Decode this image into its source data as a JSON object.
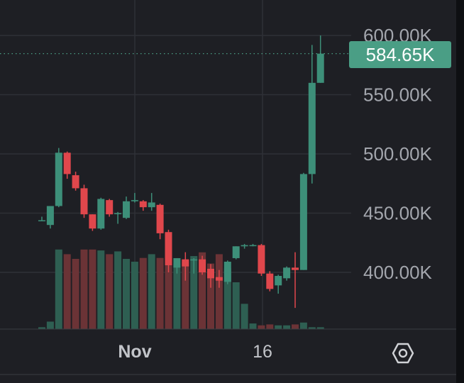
{
  "chart_data": {
    "type": "candlestick",
    "x_ticks": [
      "Nov",
      "16"
    ],
    "y_ticks": [
      "600.00K",
      "550.00K",
      "500.00K",
      "450.00K",
      "400.00K"
    ],
    "ylim": [
      370000,
      615000
    ],
    "grid": true,
    "last_price": "584.65K",
    "candles": [
      {
        "open": 444,
        "high": 447,
        "low": 444,
        "close": 444
      },
      {
        "open": 440,
        "high": 454,
        "low": 437,
        "close": 456
      },
      {
        "open": 456,
        "high": 505,
        "low": 455,
        "close": 501
      },
      {
        "open": 501,
        "high": 502,
        "low": 479,
        "close": 483
      },
      {
        "open": 482,
        "high": 485,
        "low": 469,
        "close": 471
      },
      {
        "open": 471,
        "high": 474,
        "low": 446,
        "close": 449
      },
      {
        "open": 449,
        "high": 449,
        "low": 435,
        "close": 437
      },
      {
        "open": 437,
        "high": 463,
        "low": 436,
        "close": 462
      },
      {
        "open": 461,
        "high": 462,
        "low": 447,
        "close": 449
      },
      {
        "open": 450,
        "high": 451,
        "low": 441,
        "close": 450
      },
      {
        "open": 446,
        "high": 464,
        "low": 445,
        "close": 460
      },
      {
        "open": 460,
        "high": 467,
        "low": 459,
        "close": 461
      },
      {
        "open": 460,
        "high": 461,
        "low": 452,
        "close": 455
      },
      {
        "open": 455,
        "high": 467,
        "low": 452,
        "close": 459
      },
      {
        "open": 457,
        "high": 458,
        "low": 428,
        "close": 433
      },
      {
        "open": 434,
        "high": 436,
        "low": 400,
        "close": 406
      },
      {
        "open": 404,
        "high": 412,
        "low": 399,
        "close": 412
      },
      {
        "open": 411,
        "high": 417,
        "low": 393,
        "close": 405
      },
      {
        "open": 410,
        "high": 412,
        "low": 399,
        "close": 411
      },
      {
        "open": 411,
        "high": 414,
        "low": 398,
        "close": 400
      },
      {
        "open": 403,
        "high": 407,
        "low": 387,
        "close": 395
      },
      {
        "open": 396,
        "high": 402,
        "low": 387,
        "close": 393
      },
      {
        "open": 392,
        "high": 410,
        "low": 390,
        "close": 409
      },
      {
        "open": 412,
        "high": 422,
        "low": 411,
        "close": 422
      },
      {
        "open": 422,
        "high": 424,
        "low": 420,
        "close": 423
      },
      {
        "open": 423,
        "high": 424,
        "low": 422,
        "close": 423
      },
      {
        "open": 423,
        "high": 424,
        "low": 397,
        "close": 399
      },
      {
        "open": 399,
        "high": 401,
        "low": 384,
        "close": 386
      },
      {
        "open": 389,
        "high": 398,
        "low": 382,
        "close": 397
      },
      {
        "open": 395,
        "high": 405,
        "low": 393,
        "close": 404
      },
      {
        "open": 404,
        "high": 417,
        "low": 370,
        "close": 402
      },
      {
        "open": 402,
        "high": 484,
        "low": 402,
        "close": 483
      },
      {
        "open": 483,
        "high": 592,
        "low": 475,
        "close": 560
      },
      {
        "open": 560,
        "high": 600,
        "low": 560,
        "close": 584.65
      }
    ],
    "volumes": [
      2,
      8,
      85,
      80,
      75,
      85,
      85,
      84,
      80,
      83,
      75,
      72,
      76,
      80,
      76,
      82,
      70,
      72,
      78,
      82,
      70,
      80,
      65,
      50,
      27,
      6,
      4,
      5,
      4,
      4,
      5,
      7,
      2,
      2
    ],
    "colors": {
      "up": "#3d8f79",
      "down": "#e0474c",
      "up_volume": "#2e5f52",
      "down_volume": "#6b3336",
      "grid": "#2e3036",
      "price_line": "#4a9e85"
    }
  },
  "ui": {
    "settings_icon": "settings-hexagon-icon"
  }
}
